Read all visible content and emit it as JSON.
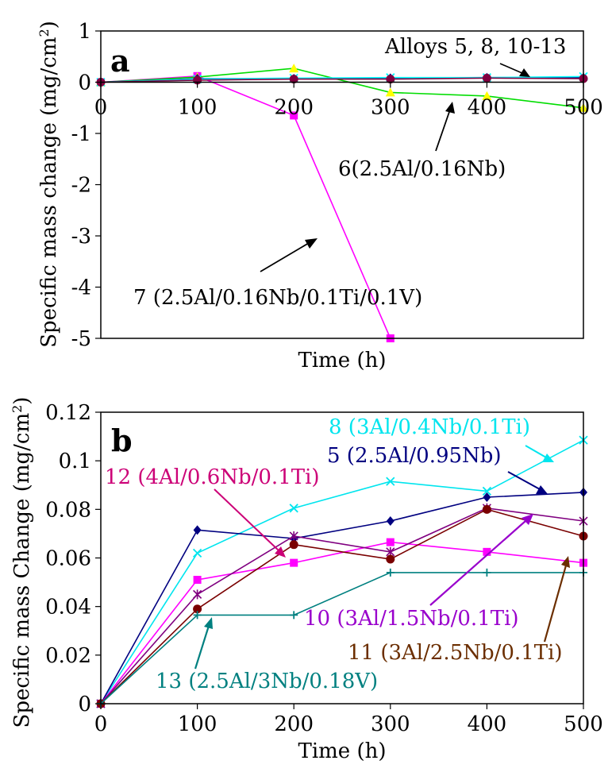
{
  "chart_data": [
    {
      "panel_label": "a",
      "type": "line",
      "xlabel": "Time (h)",
      "ylabel_main": "Specific mass change (mg/cm",
      "ylabel_sup": "2",
      "ylabel_end": ")",
      "xlim": [
        0,
        500
      ],
      "ylim": [
        -5,
        1
      ],
      "xticks": [
        0,
        100,
        200,
        300,
        400,
        500
      ],
      "yticks": [
        -5,
        -4,
        -3,
        -2,
        -1,
        0,
        1
      ],
      "grid": false,
      "series": [
        {
          "color": "#ff00ff",
          "marker": "square",
          "x": [
            0,
            100,
            200,
            300
          ],
          "y": [
            0,
            0.12,
            -0.65,
            -5.0
          ]
        },
        {
          "color": "#00dd00",
          "marker": "triangle",
          "marker_color": "#ffff00",
          "x": [
            0,
            100,
            200,
            300,
            400,
            500
          ],
          "y": [
            0,
            0.1,
            0.27,
            -0.2,
            -0.27,
            -0.5
          ]
        },
        {
          "color": "#000080",
          "marker": "diamond",
          "x": [
            0,
            100,
            200,
            300,
            400,
            500
          ],
          "y": [
            0,
            0.07,
            0.07,
            0.08,
            0.09,
            0.09
          ]
        },
        {
          "color": "#00ffff",
          "marker": "x",
          "x": [
            0,
            100,
            200,
            300,
            400,
            500
          ],
          "y": [
            0,
            0.06,
            0.08,
            0.09,
            0.09,
            0.11
          ]
        },
        {
          "color": "#800040",
          "marker": "circle",
          "x": [
            0,
            100,
            200,
            300,
            400,
            500
          ],
          "y": [
            0,
            0.04,
            0.06,
            0.06,
            0.08,
            0.07
          ]
        }
      ],
      "annotations": [
        {
          "text": "Alloys 5, 8, 10-13"
        },
        {
          "text": "6(2.5Al/0.16Nb)"
        },
        {
          "text": "7 (2.5Al/0.16Nb/0.1Ti/0.1V)"
        }
      ]
    },
    {
      "panel_label": "b",
      "type": "line",
      "xlabel": "Time (h)",
      "ylabel_main": "Specific mass Change (mg/cm",
      "ylabel_sup": "2",
      "ylabel_end": ")",
      "xlim": [
        0,
        500
      ],
      "ylim": [
        0,
        0.12
      ],
      "xticks": [
        0,
        100,
        200,
        300,
        400,
        500
      ],
      "yticks": [
        0,
        0.02,
        0.04,
        0.06,
        0.08,
        0.1,
        0.12
      ],
      "grid": false,
      "series": [
        {
          "label": "8 (3Al/0.4Nb/0.1Ti)",
          "color": "#00e5ee",
          "marker": "x",
          "x": [
            0,
            100,
            200,
            300,
            400,
            500
          ],
          "y": [
            0,
            0.062,
            0.0805,
            0.0915,
            0.0875,
            0.1085
          ]
        },
        {
          "label": "5 (2.5Al/0.95Nb)",
          "color": "#000080",
          "marker": "diamond",
          "x": [
            0,
            100,
            200,
            300,
            400,
            500
          ],
          "y": [
            0,
            0.0715,
            0.068,
            0.0752,
            0.085,
            0.087
          ]
        },
        {
          "label": "12 (4Al/0.6Nb/0.1Ti)",
          "color": "#ff00ff",
          "marker": "square",
          "x": [
            0,
            100,
            200,
            300,
            400,
            500
          ],
          "y": [
            0,
            0.051,
            0.058,
            0.0665,
            0.0625,
            0.058
          ]
        },
        {
          "label": "10 (3Al/1.5Nb/0.1Ti)",
          "color": "#800080",
          "marker": "star",
          "x": [
            0,
            100,
            200,
            300,
            400,
            500
          ],
          "y": [
            0,
            0.045,
            0.069,
            0.0625,
            0.0805,
            0.0752
          ]
        },
        {
          "label": "11 (3Al/2.5Nb/0.1Ti)",
          "color": "#7a0000",
          "marker": "circle",
          "x": [
            0,
            100,
            200,
            300,
            400,
            500
          ],
          "y": [
            0,
            0.039,
            0.0655,
            0.0595,
            0.08,
            0.069
          ]
        },
        {
          "label": "13 (2.5Al/3Nb/0.18V)",
          "color": "#008080",
          "marker": "plus",
          "x": [
            0,
            100,
            200,
            300,
            400,
            500
          ],
          "y": [
            0,
            0.0365,
            0.0365,
            0.054,
            0.054,
            0.054
          ]
        }
      ],
      "annotations": [
        {
          "text": "8 (3Al/0.4Nb/0.1Ti)",
          "color": "#00e5ee"
        },
        {
          "text": "5 (2.5Al/0.95Nb)",
          "color": "#000080"
        },
        {
          "text": "12 (4Al/0.6Nb/0.1Ti)",
          "color": "#cc0077"
        },
        {
          "text": "10 (3Al/1.5Nb/0.1Ti)",
          "color": "#9900cc"
        },
        {
          "text": "11 (3Al/2.5Nb/0.1Ti)",
          "color": "#6b2e00"
        },
        {
          "text": "13 (2.5Al/3Nb/0.18V)",
          "color": "#008080"
        }
      ]
    }
  ]
}
